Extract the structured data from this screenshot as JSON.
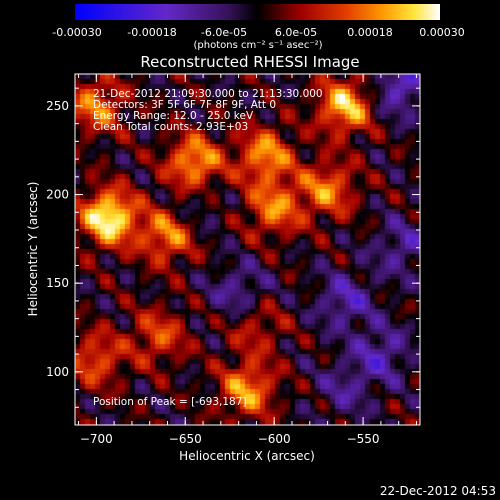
{
  "colorbar": {
    "ticks": [
      "-0.00030",
      "-0.00018",
      "-6.0e-05",
      "6.0e-05",
      "0.00018",
      "0.00030"
    ],
    "unit_text": "(photons cm⁻² s⁻¹ asec⁻²)"
  },
  "annotations": {
    "time_range": "21-Dec-2012 21:09:30.000 to 21:13:30.000",
    "detectors": "Detectors: 3F 5F 6F 7F 8F 9F, Att 0",
    "energy_range": "Energy Range: 12.0 - 25.0 keV",
    "algorithm": "Clean     Total counts: 2.93E+03",
    "peak_position": "Position of Peak = [-693,187]"
  },
  "timestamp": "22-Dec-2012 04:53",
  "chart_data": {
    "type": "heatmap",
    "title": "Reconstructed RHESSI Image",
    "xlabel": "Heliocentric X (arcsec)",
    "ylabel": "Heliocentric Y (arcsec)",
    "xlim": [
      -712,
      -518
    ],
    "ylim": [
      70,
      268
    ],
    "x_ticks": [
      -700,
      -650,
      -600,
      -550
    ],
    "y_ticks": [
      100,
      150,
      200,
      250
    ],
    "colorbar_range": [
      -0.0003,
      0.0003
    ],
    "peak": {
      "x": -693,
      "y": 187
    },
    "hot_regions": [
      {
        "x": -693,
        "y": 187,
        "value": 0.0003
      },
      {
        "x": -560,
        "y": 250,
        "value": 0.00024
      },
      {
        "x": -645,
        "y": 218,
        "value": 0.00022
      },
      {
        "x": -605,
        "y": 222,
        "value": 0.0002
      },
      {
        "x": -600,
        "y": 192,
        "value": 0.00018
      },
      {
        "x": -570,
        "y": 203,
        "value": 0.00018
      },
      {
        "x": -660,
        "y": 177,
        "value": 0.00019
      },
      {
        "x": -700,
        "y": 250,
        "value": 0.00018
      },
      {
        "x": -615,
        "y": 90,
        "value": 0.0002
      },
      {
        "x": -700,
        "y": 107,
        "value": 0.00015
      },
      {
        "x": -665,
        "y": 120,
        "value": 0.00014
      },
      {
        "x": -610,
        "y": 125,
        "value": 0.0001
      }
    ],
    "cold_regions": [
      {
        "x": -620,
        "y": 145,
        "value": -0.0001
      },
      {
        "x": -560,
        "y": 140,
        "value": -0.00012
      },
      {
        "x": -540,
        "y": 110,
        "value": -0.00012
      },
      {
        "x": -528,
        "y": 170,
        "value": -0.0001
      },
      {
        "x": -560,
        "y": 90,
        "value": -8e-05
      },
      {
        "x": -530,
        "y": 260,
        "value": -0.00014
      },
      {
        "x": -645,
        "y": 192,
        "value": -6e-05
      }
    ]
  }
}
